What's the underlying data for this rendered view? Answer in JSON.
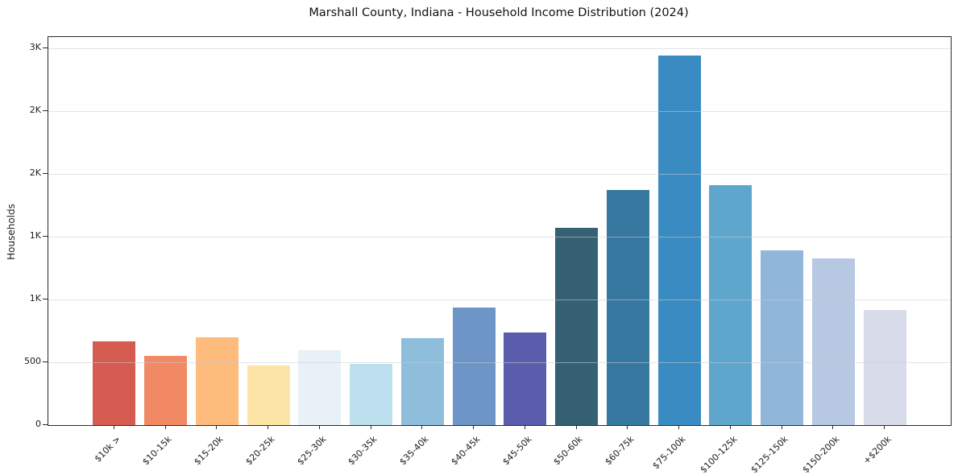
{
  "chart_data": {
    "type": "bar",
    "title": "Marshall County, Indiana - Household Income Distribution (2024)",
    "xlabel": "",
    "ylabel": "Households",
    "categories": [
      "< $10k",
      "$10-15k",
      "$15-20k",
      "$20-25k",
      "$25-30k",
      "$30-35k",
      "$35-40k",
      "$40-45k",
      "$45-50k",
      "$50-60k",
      "$60-75k",
      "$75-100k",
      "$100-125k",
      "$125-150k",
      "$150-200k",
      "$200k+"
    ],
    "values": [
      670,
      550,
      700,
      475,
      595,
      485,
      695,
      935,
      735,
      1570,
      1875,
      2940,
      1910,
      1390,
      1325,
      920
    ],
    "bar_colors": [
      "#d65c52",
      "#f18a64",
      "#fdbb7c",
      "#fde5a7",
      "#e7f1f6",
      "#bedfee",
      "#8fbddc",
      "#6e95c8",
      "#5a5dab",
      "#366174",
      "#36789f",
      "#398bc2",
      "#5ea6cb",
      "#90b7da",
      "#b7c8e2",
      "#d8dbe9"
    ],
    "ylim": [
      0,
      3090
    ],
    "yticks": {
      "values": [
        0,
        500,
        1000,
        1500,
        2000,
        2500,
        3000
      ],
      "labels": [
        "0",
        "500",
        "1K",
        "1K",
        "2K",
        "2K",
        "3K"
      ]
    },
    "grid": "horizontal",
    "legend": null
  }
}
